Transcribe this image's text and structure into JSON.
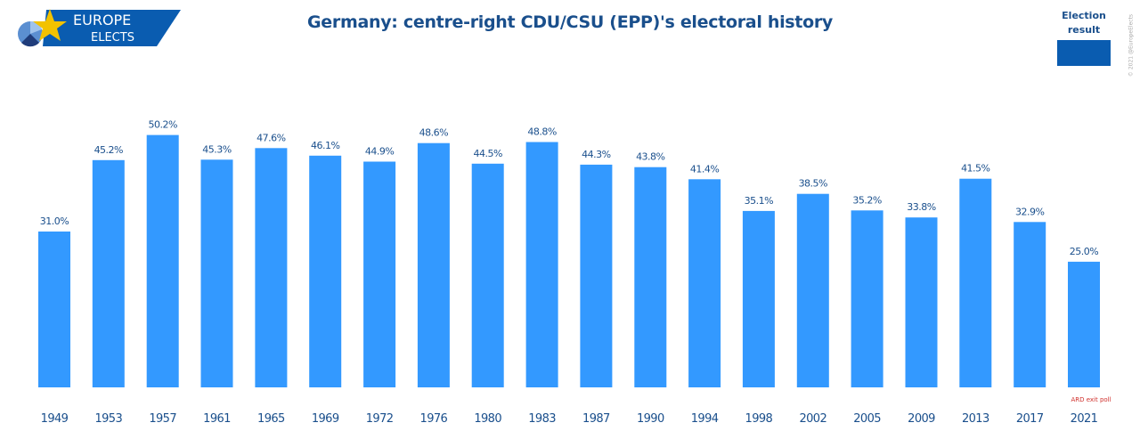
{
  "logo": {
    "line1": "EUROPE",
    "line2": "ELECTS"
  },
  "copyright": "© 2021 @EuropeElects",
  "colors": {
    "bar": "#3399ff",
    "legend": "#0a5cb0",
    "text": "#1a4f8c",
    "annotation": "#d0312d"
  },
  "chart_data": {
    "type": "bar",
    "title": "Germany: centre-right CDU/CSU (EPP)'s electoral history",
    "xlabel": "",
    "ylabel": "",
    "ylim": [
      0,
      50.2
    ],
    "grid": false,
    "legend": {
      "placement": "top-right",
      "entries": [
        "Election result"
      ]
    },
    "categories": [
      "1949",
      "1953",
      "1957",
      "1961",
      "1965",
      "1969",
      "1972",
      "1976",
      "1980",
      "1983",
      "1987",
      "1990",
      "1994",
      "1998",
      "2002",
      "2005",
      "2009",
      "2013",
      "2017",
      "2021"
    ],
    "values": [
      31.0,
      45.2,
      50.2,
      45.3,
      47.6,
      46.1,
      44.9,
      48.6,
      44.5,
      48.8,
      44.3,
      43.8,
      41.4,
      35.1,
      38.5,
      35.2,
      33.8,
      41.5,
      32.9,
      25.0
    ],
    "labels": [
      "31.0%",
      "45.2%",
      "50.2%",
      "45.3%",
      "47.6%",
      "46.1%",
      "44.9%",
      "48.6%",
      "44.5%",
      "48.8%",
      "44.3%",
      "43.8%",
      "41.4%",
      "35.1%",
      "38.5%",
      "35.2%",
      "33.8%",
      "41.5%",
      "32.9%",
      "25.0%"
    ],
    "annotations": [
      {
        "category": "2021",
        "text": "ARD exit poll"
      }
    ]
  }
}
